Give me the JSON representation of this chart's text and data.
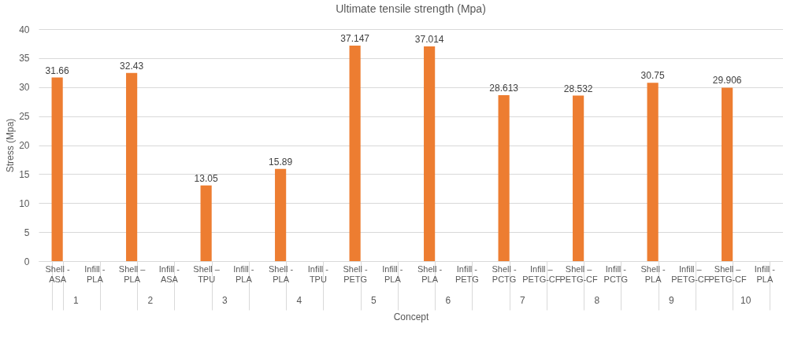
{
  "chart_data": {
    "type": "bar",
    "title": "Ultimate tensile strength (Mpa)",
    "xlabel": "Concept",
    "ylabel": "Stress (Mpa)",
    "categories": [
      "Shell - ASA",
      "Infill - PLA",
      "Shell – PLA",
      "Infill - ASA",
      "Shell – TPU",
      "Infill - PLA",
      "Shell - PLA",
      "Infill - TPU",
      "Shell - PETG",
      "Infill - PLA",
      "Shell - PLA",
      "Infill - PETG",
      "Shell - PCTG",
      "Infill – PETG-CF",
      "Shell – PETG-CF",
      "Infill - PCTG",
      "Shell - PLA",
      "Infill – PETG-CF",
      "Shell – PETG-CF",
      "Infill - PLA"
    ],
    "values": [
      31.66,
      null,
      32.43,
      null,
      13.05,
      null,
      15.89,
      null,
      37.147,
      null,
      37.014,
      null,
      28.613,
      null,
      28.532,
      null,
      30.75,
      null,
      29.906,
      null
    ],
    "color": "#ed7d31",
    "data_labels": true,
    "ylim": [
      0,
      40
    ],
    "yticks": [
      0,
      5,
      10,
      15,
      20,
      25,
      30,
      35,
      40
    ],
    "grid": "y",
    "annotations": [
      "1",
      "2",
      "3",
      "4",
      "5",
      "6",
      "7",
      "8",
      "9",
      "10"
    ]
  }
}
